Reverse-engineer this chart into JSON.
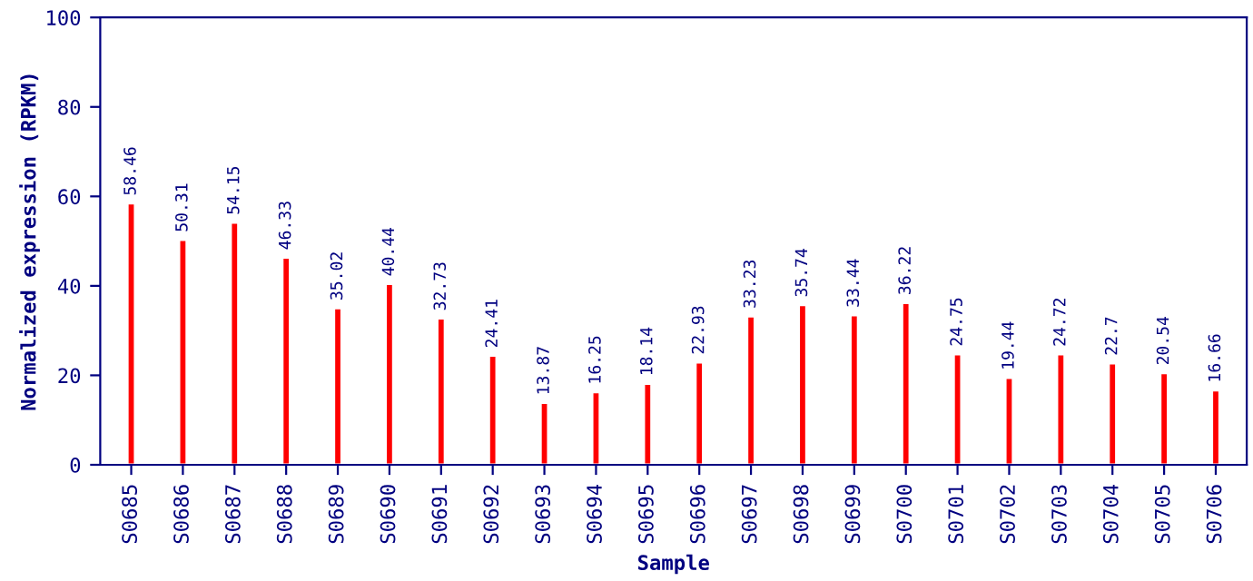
{
  "chart_data": {
    "type": "bar",
    "xlabel": "Sample",
    "ylabel": "Normalized expression (RPKM)",
    "categories": [
      "S0685",
      "S0686",
      "S0687",
      "S0688",
      "S0689",
      "S0690",
      "S0691",
      "S0692",
      "S0693",
      "S0694",
      "S0695",
      "S0696",
      "S0697",
      "S0698",
      "S0699",
      "S0700",
      "S0701",
      "S0702",
      "S0703",
      "S0704",
      "S0705",
      "S0706"
    ],
    "values": [
      58.46,
      50.31,
      54.15,
      46.33,
      35.02,
      40.44,
      32.73,
      24.41,
      13.87,
      16.25,
      18.14,
      22.93,
      33.23,
      35.74,
      33.44,
      36.22,
      24.75,
      19.44,
      24.72,
      22.7,
      20.54,
      16.66
    ],
    "color": "#ff0000",
    "data_labels": true,
    "ylim": [
      0,
      100
    ],
    "yticks": [
      0,
      20,
      40,
      60,
      80,
      100
    ],
    "grid": false,
    "legend": false
  }
}
